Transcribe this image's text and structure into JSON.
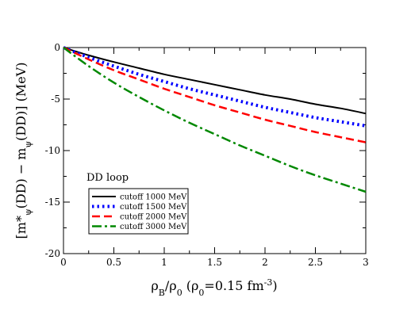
{
  "chart_data": {
    "type": "line",
    "xlim": [
      0,
      3
    ],
    "ylim": [
      -20,
      0
    ],
    "xticks": [
      0,
      0.5,
      1,
      1.5,
      2,
      2.5,
      3
    ],
    "xtick_labels": [
      "0",
      "0.5",
      "1",
      "1.5",
      "2",
      "2.5",
      "3"
    ],
    "yticks": [
      -20,
      -15,
      -10,
      -5,
      0
    ],
    "ytick_labels": [
      "-20",
      "-15",
      "-10",
      "-5",
      "0"
    ],
    "xlabel": "ρB/ρ0 (ρ0=0.15 fm-3)",
    "ylabel": "[m*ψ(DD) − mψ(DD)] (MeV)",
    "annotation": "DD loop",
    "grid": false,
    "legend_position": "lower-left",
    "x": [
      0,
      0.25,
      0.5,
      0.75,
      1.0,
      1.25,
      1.5,
      1.75,
      2.0,
      2.25,
      2.5,
      2.75,
      3.0
    ],
    "series": [
      {
        "name": "cutoff 1000 MeV",
        "color": "#000000",
        "dash": "solid",
        "values": [
          0,
          -0.75,
          -1.4,
          -2.0,
          -2.6,
          -3.1,
          -3.6,
          -4.1,
          -4.6,
          -5.0,
          -5.5,
          -5.9,
          -6.4
        ]
      },
      {
        "name": "cutoff 1500 MeV",
        "color": "#0000ff",
        "dash": "dotted",
        "values": [
          0,
          -0.95,
          -1.8,
          -2.6,
          -3.3,
          -4.0,
          -4.6,
          -5.2,
          -5.8,
          -6.3,
          -6.8,
          -7.2,
          -7.6
        ]
      },
      {
        "name": "cutoff 2000 MeV",
        "color": "#ff0000",
        "dash": "dashed",
        "values": [
          0,
          -1.15,
          -2.2,
          -3.1,
          -4.0,
          -4.8,
          -5.6,
          -6.3,
          -7.0,
          -7.6,
          -8.2,
          -8.7,
          -9.2
        ]
      },
      {
        "name": "cutoff 3000 MeV",
        "color": "#008800",
        "dash": "dashdot",
        "values": [
          0,
          -1.8,
          -3.4,
          -4.8,
          -6.1,
          -7.3,
          -8.4,
          -9.5,
          -10.5,
          -11.5,
          -12.4,
          -13.2,
          -14.0
        ]
      }
    ]
  }
}
